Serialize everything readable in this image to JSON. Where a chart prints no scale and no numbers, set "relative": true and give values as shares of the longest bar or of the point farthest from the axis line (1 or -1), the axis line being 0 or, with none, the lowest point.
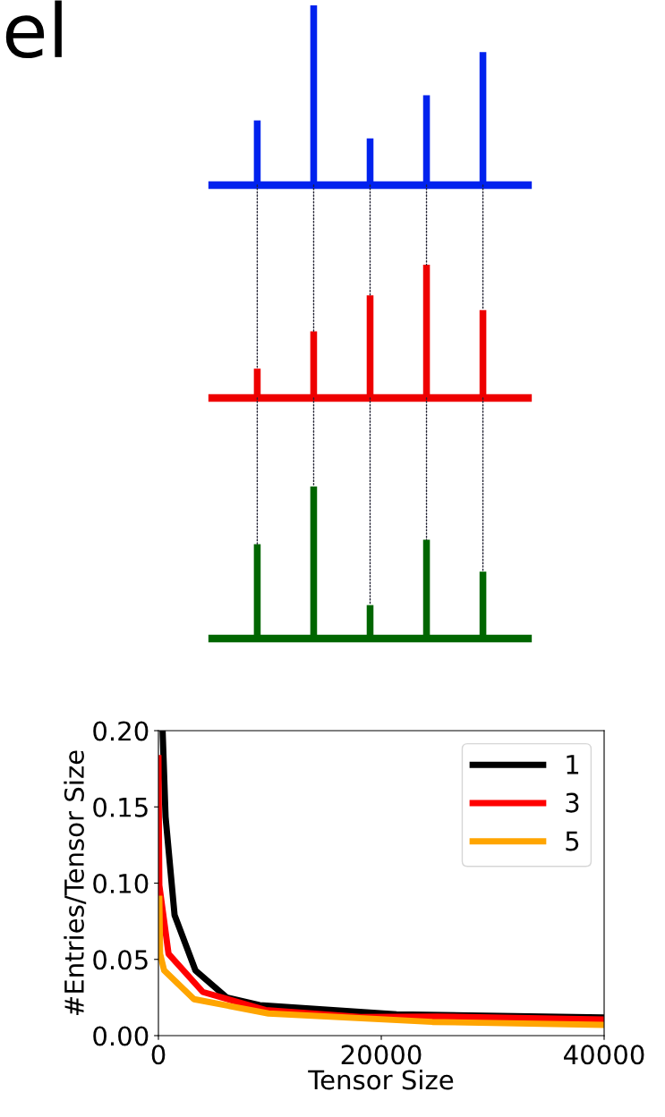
{
  "chart_data": [
    {
      "type": "bar",
      "relative": true,
      "categories": [
        null,
        null,
        null,
        null,
        null
      ],
      "values": [
        0.36,
        1,
        0.26,
        0.5,
        0.74
      ],
      "color": "#0022ee",
      "annotations": [
        "el"
      ]
    },
    {
      "type": "bar",
      "relative": true,
      "categories": [
        null,
        null,
        null,
        null,
        null
      ],
      "values": [
        0.22,
        0.5,
        0.77,
        1,
        0.66
      ],
      "color": "#ee0000"
    },
    {
      "type": "bar",
      "relative": true,
      "categories": [
        null,
        null,
        null,
        null,
        null
      ],
      "values": [
        0.62,
        1,
        0.22,
        0.65,
        0.44
      ],
      "color": "#006600"
    },
    {
      "type": "line",
      "xlabel": "Tensor Size",
      "ylabel": "#Entries/Tensor Size",
      "xlim": [
        0,
        40000
      ],
      "ylim": [
        0,
        0.2
      ],
      "xticks": [
        0,
        20000,
        40000
      ],
      "yticks": [
        {
          "value": 0,
          "label": "0.00"
        },
        {
          "value": 0.05,
          "label": "0.05"
        },
        {
          "value": 0.1,
          "label": "0.10"
        },
        {
          "value": 0.15,
          "label": "0.15"
        },
        {
          "value": 0.2,
          "label": "0.20"
        }
      ],
      "grid": false,
      "legend": "top right",
      "series": [
        {
          "name": "1",
          "color": "#000000",
          "x": [
            375,
            640,
            1450,
            3320,
            6130,
            9080,
            21370,
            40000
          ],
          "values": [
            0.2,
            0.1435,
            0.079,
            0.0428,
            0.025,
            0.02,
            0.0139,
            0.0119
          ]
        },
        {
          "name": "3",
          "color": "#ff0000",
          "x": [
            0,
            80,
            910,
            3990,
            9610,
            18150,
            25000,
            40000
          ],
          "values": [
            0.182,
            0.0985,
            0.0536,
            0.0286,
            0.0168,
            0.0122,
            0.0125,
            0.0106
          ]
        },
        {
          "name": "5",
          "color": "#ffa500",
          "x": [
            80,
            150,
            510,
            3190,
            9880,
            24580,
            40000
          ],
          "values": [
            0.0897,
            0.0536,
            0.0428,
            0.0239,
            0.0145,
            0.009,
            0.007
          ]
        }
      ]
    }
  ]
}
